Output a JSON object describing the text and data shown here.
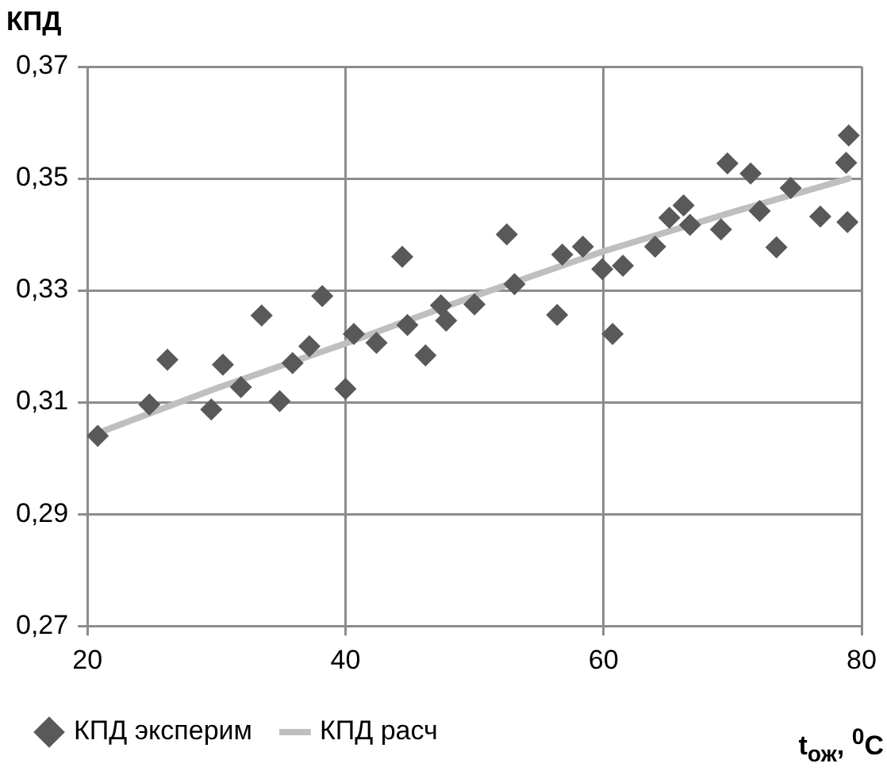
{
  "chart_data": {
    "type": "scatter",
    "ylabel": "КПД",
    "xlabel": "t$_{ож}$, $^{0}$C",
    "xlim": [
      20,
      80
    ],
    "xticks": [
      20,
      40,
      60,
      80
    ],
    "ylim": [
      0.27,
      0.37
    ],
    "yticks": [
      {
        "value": 0.27,
        "label": "0,27"
      },
      {
        "value": 0.29,
        "label": "0,29"
      },
      {
        "value": 0.31,
        "label": "0,31"
      },
      {
        "value": 0.33,
        "label": "0,33"
      },
      {
        "value": 0.35,
        "label": "0,35"
      },
      {
        "value": 0.37,
        "label": "0,37"
      }
    ],
    "grid": true,
    "legend": "bottom",
    "marker": "diamond",
    "series": [
      {
        "name": "КПД эксперим",
        "color": "#595959",
        "x": [
          20.8,
          24.8,
          26.2,
          29.6,
          30.5,
          31.9,
          33.5,
          34.9,
          35.9,
          37.2,
          38.2,
          40.0,
          40.65,
          42.4,
          44.4,
          44.8,
          46.2,
          47.4,
          47.8,
          50.0,
          52.5,
          53.1,
          56.4,
          56.8,
          58.4,
          59.9,
          60.7,
          61.5,
          64.0,
          65.1,
          66.2,
          66.7,
          69.1,
          69.6,
          71.4,
          72.1,
          73.4,
          74.5,
          76.8,
          78.8,
          79.0,
          78.9
        ],
        "values": [
          0.304,
          0.3096,
          0.3176,
          0.3087,
          0.3167,
          0.3127,
          0.3255,
          0.3102,
          0.317,
          0.32,
          0.329,
          0.3124,
          0.3222,
          0.3206,
          0.336,
          0.3238,
          0.3184,
          0.3273,
          0.3246,
          0.3275,
          0.34,
          0.3311,
          0.3256,
          0.3364,
          0.3378,
          0.3338,
          0.3222,
          0.3344,
          0.3378,
          0.343,
          0.3452,
          0.3417,
          0.3409,
          0.3527,
          0.3509,
          0.3442,
          0.3377,
          0.3483,
          0.3432,
          0.3528,
          0.3577,
          0.3422
        ]
      },
      {
        "name": "КПД расч",
        "type": "line",
        "color": "#bfbfbf",
        "line_style": "solid",
        "marker": "none",
        "x": [
          20.8,
          30,
          40,
          50,
          60,
          70,
          79
        ],
        "values": [
          0.3045,
          0.3125,
          0.3205,
          0.329,
          0.337,
          0.344,
          0.35
        ]
      }
    ]
  }
}
